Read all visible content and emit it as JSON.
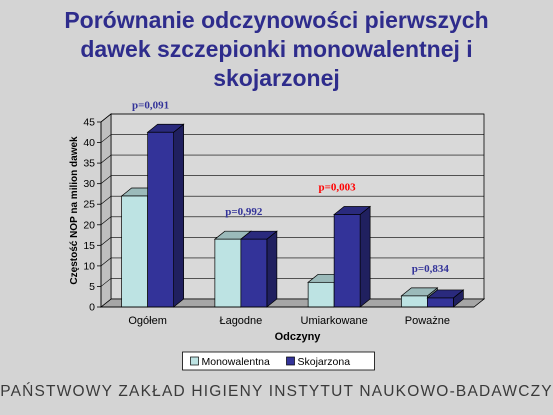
{
  "slide": {
    "title_lines": [
      "Porównanie odczynowości pierwszych",
      "dawek szczepionki monowalentnej i",
      "skojarzonej"
    ],
    "footer": "PAŃSTWOWY ZAKŁAD HIGIENY INSTYTUT NAUKOWO-BADAWCZY"
  },
  "chart_data": {
    "type": "bar",
    "categories": [
      "Ogółem",
      "Łagodne",
      "Umiarkowane",
      "Poważne"
    ],
    "series": [
      {
        "name": "Monowalentna",
        "values": [
          27,
          16.5,
          6,
          2.7
        ],
        "color": "#bde3e3"
      },
      {
        "name": "Skojarzona",
        "values": [
          42.5,
          16.5,
          22.5,
          2.2
        ],
        "color": "#333399"
      }
    ],
    "annotations": [
      {
        "category": "Ogółem",
        "text": "p=0,091",
        "color": "#333399"
      },
      {
        "category": "Łagodne",
        "text": "p=0,992",
        "color": "#333399"
      },
      {
        "category": "Umiarkowane",
        "text": "p=0,003",
        "color": "#ff0000"
      },
      {
        "category": "Poważne",
        "text": "p=0,834",
        "color": "#333399"
      }
    ],
    "title": "",
    "xlabel": "Odczyny",
    "ylabel": "Częstość NOP na milion dawek",
    "ylim": [
      0,
      45
    ],
    "yticks": [
      0,
      5,
      10,
      15,
      20,
      25,
      30,
      35,
      40,
      45
    ],
    "grid": true,
    "three_d": true,
    "legend_position": "bottom"
  }
}
